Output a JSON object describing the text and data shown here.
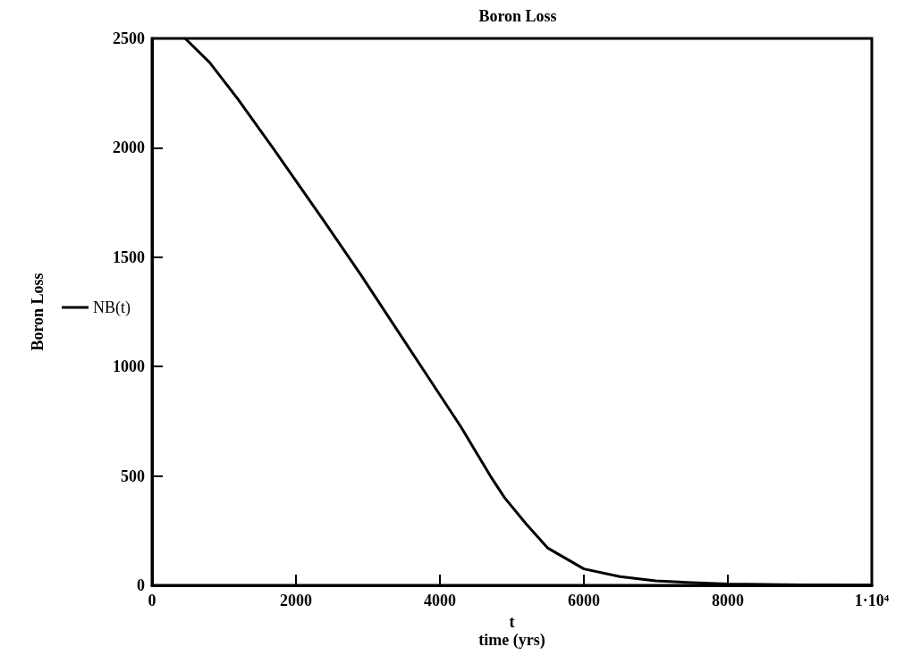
{
  "chart_data": {
    "type": "line",
    "title": "Boron Loss",
    "xlabel": "t\ntime (yrs)",
    "ylabel": "Boron Loss",
    "x": [
      460,
      800,
      1200,
      1700,
      2400,
      2900,
      3400,
      3900,
      4300,
      4700,
      4900,
      5200,
      5500,
      6000,
      6500,
      7000,
      7500,
      8000,
      9000,
      10000
    ],
    "series": [
      {
        "name": "NB(t)",
        "color": "#000000",
        "values": [
          2500,
          2390,
          2220,
          1990,
          1660,
          1420,
          1170,
          920,
          720,
          500,
          400,
          280,
          170,
          75,
          40,
          20,
          12,
          6,
          2,
          1
        ]
      }
    ],
    "xlim": [
      0,
      10000
    ],
    "xticks": [
      0,
      2000,
      4000,
      6000,
      8000,
      {
        "value": 10000,
        "label": "1·10⁴"
      }
    ],
    "ylim": [
      0,
      2500
    ],
    "yticks": [
      0,
      500,
      1000,
      1500,
      2000,
      2500
    ],
    "grid": false,
    "legend": "left",
    "marker": "none",
    "line_style": "solid"
  }
}
